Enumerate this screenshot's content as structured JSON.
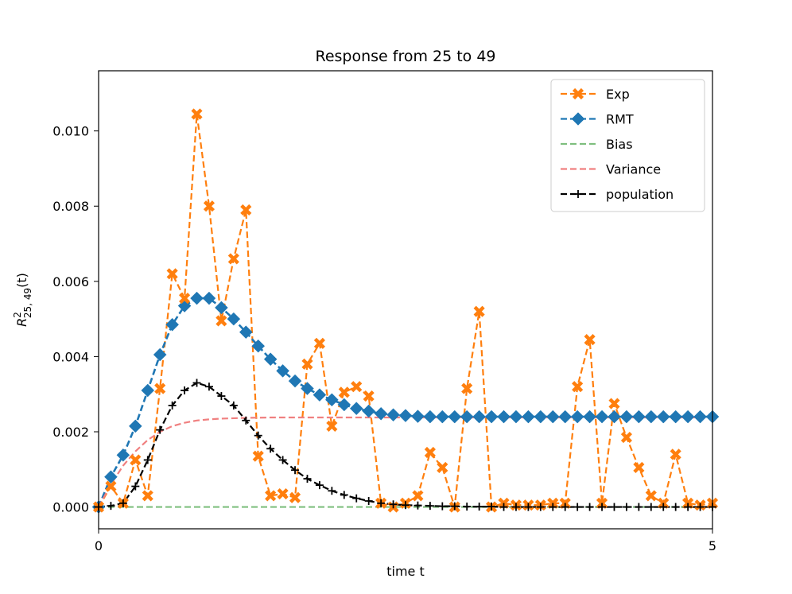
{
  "chart_data": {
    "type": "line",
    "title": "Response from 25 to 49",
    "xlabel": "time t",
    "ylabel_base": "R",
    "ylabel_sup": "2",
    "ylabel_sub": "25, 49",
    "ylabel_suffix": "(t)",
    "xlim": [
      0,
      5
    ],
    "ylim": [
      -0.00058,
      0.0116
    ],
    "xticks": [
      0,
      5
    ],
    "xtick_labels": [
      "0",
      "5"
    ],
    "yticks": [
      0.0,
      0.002,
      0.004,
      0.006,
      0.008,
      0.01
    ],
    "ytick_labels": [
      "0.000",
      "0.002",
      "0.004",
      "0.006",
      "0.008",
      "0.010"
    ],
    "grid": false,
    "legend_position": "top-right",
    "series": [
      {
        "name": "Exp",
        "color": "#ff7f0e",
        "line": "dashed",
        "marker": "x-filled",
        "x": [
          0.0,
          0.1,
          0.2,
          0.3,
          0.4,
          0.5,
          0.6,
          0.7,
          0.8,
          0.9,
          1.0,
          1.1,
          1.2,
          1.3,
          1.4,
          1.5,
          1.6,
          1.7,
          1.8,
          1.9,
          2.0,
          2.1,
          2.2,
          2.3,
          2.4,
          2.5,
          2.6,
          2.7,
          2.8,
          2.9,
          3.0,
          3.1,
          3.2,
          3.3,
          3.4,
          3.5,
          3.6,
          3.7,
          3.8,
          3.9,
          4.0,
          4.1,
          4.2,
          4.3,
          4.4,
          4.5,
          4.6,
          4.7,
          4.8,
          4.9,
          5.0
        ],
        "y": [
          0.0,
          0.00055,
          0.0001,
          0.00125,
          0.0003,
          0.00315,
          0.0062,
          0.00555,
          0.01045,
          0.008,
          0.00495,
          0.0066,
          0.0079,
          0.00135,
          0.0003,
          0.00035,
          0.00025,
          0.0038,
          0.00435,
          0.00215,
          0.00305,
          0.0032,
          0.00295,
          0.0001,
          0.0,
          0.0001,
          0.0003,
          0.00145,
          0.00105,
          0.0,
          0.00315,
          0.0052,
          0.0,
          0.0001,
          5e-05,
          5e-05,
          5e-05,
          0.0001,
          0.0001,
          0.0032,
          0.00445,
          0.0001,
          0.00275,
          0.00185,
          0.00105,
          0.0003,
          0.0001,
          0.0014,
          0.0001,
          5e-05,
          0.0001
        ]
      },
      {
        "name": "RMT",
        "color": "#1f77b4",
        "line": "dashed",
        "marker": "diamond",
        "x": [
          0.0,
          0.1,
          0.2,
          0.3,
          0.4,
          0.5,
          0.6,
          0.7,
          0.8,
          0.9,
          1.0,
          1.1,
          1.2,
          1.3,
          1.4,
          1.5,
          1.6,
          1.7,
          1.8,
          1.9,
          2.0,
          2.1,
          2.2,
          2.3,
          2.4,
          2.5,
          2.6,
          2.7,
          2.8,
          2.9,
          3.0,
          3.1,
          3.2,
          3.3,
          3.4,
          3.5,
          3.6,
          3.7,
          3.8,
          3.9,
          4.0,
          4.1,
          4.2,
          4.3,
          4.4,
          4.5,
          4.6,
          4.7,
          4.8,
          4.9,
          5.0
        ],
        "y": [
          0.0,
          0.0008,
          0.00138,
          0.00215,
          0.0031,
          0.00405,
          0.00485,
          0.00535,
          0.00555,
          0.00555,
          0.0053,
          0.005,
          0.00465,
          0.00428,
          0.00393,
          0.00362,
          0.00335,
          0.00315,
          0.00298,
          0.00285,
          0.00272,
          0.00262,
          0.00255,
          0.00248,
          0.00245,
          0.00243,
          0.00241,
          0.0024,
          0.0024,
          0.0024,
          0.0024,
          0.0024,
          0.0024,
          0.0024,
          0.0024,
          0.0024,
          0.0024,
          0.0024,
          0.0024,
          0.0024,
          0.0024,
          0.0024,
          0.0024,
          0.0024,
          0.0024,
          0.0024,
          0.0024,
          0.0024,
          0.0024,
          0.0024,
          0.0024
        ]
      },
      {
        "name": "Bias",
        "color": "#7fbf7f",
        "line": "dashed",
        "marker": "none",
        "x": [
          0.0,
          0.5,
          1.0,
          1.5,
          2.0,
          2.5,
          3.0,
          3.5,
          4.0,
          4.5,
          5.0
        ],
        "y": [
          0.0,
          0.0,
          0.0,
          0.0,
          0.0,
          0.0,
          0.0,
          0.0,
          0.0,
          0.0,
          0.0
        ]
      },
      {
        "name": "Variance",
        "color": "#f08080",
        "line": "dashed",
        "marker": "none",
        "x": [
          0.0,
          0.1,
          0.2,
          0.3,
          0.4,
          0.5,
          0.6,
          0.7,
          0.8,
          0.9,
          1.0,
          1.2,
          1.4,
          1.6,
          1.8,
          2.0,
          2.5,
          3.0,
          3.5,
          4.0,
          4.5,
          5.0
        ],
        "y": [
          0.0,
          0.0006,
          0.0011,
          0.00148,
          0.00178,
          0.002,
          0.00215,
          0.00224,
          0.0023,
          0.00233,
          0.00235,
          0.00237,
          0.00238,
          0.00238,
          0.00238,
          0.00238,
          0.00238,
          0.00238,
          0.00238,
          0.00238,
          0.00238,
          0.00238
        ]
      },
      {
        "name": "population",
        "color": "#000000",
        "line": "dashed",
        "marker": "plus",
        "x": [
          0.0,
          0.1,
          0.2,
          0.3,
          0.4,
          0.5,
          0.6,
          0.7,
          0.8,
          0.9,
          1.0,
          1.1,
          1.2,
          1.3,
          1.4,
          1.5,
          1.6,
          1.7,
          1.8,
          1.9,
          2.0,
          2.1,
          2.2,
          2.3,
          2.4,
          2.5,
          2.6,
          2.7,
          2.8,
          2.9,
          3.0,
          3.1,
          3.2,
          3.3,
          3.4,
          3.5,
          3.6,
          3.7,
          3.8,
          3.9,
          4.0,
          4.1,
          4.2,
          4.3,
          4.4,
          4.5,
          4.6,
          4.7,
          4.8,
          4.9,
          5.0
        ],
        "y": [
          0.0,
          3e-05,
          0.0001,
          0.00055,
          0.00125,
          0.00205,
          0.0027,
          0.0031,
          0.0033,
          0.0032,
          0.00295,
          0.0027,
          0.0023,
          0.0019,
          0.00155,
          0.00125,
          0.00098,
          0.00075,
          0.00058,
          0.00043,
          0.00032,
          0.00023,
          0.00016,
          0.0001,
          7e-05,
          5e-05,
          4e-05,
          3e-05,
          2e-05,
          2e-05,
          1e-05,
          1e-05,
          1e-05,
          0.0,
          0.0,
          0.0,
          0.0,
          0.0,
          0.0,
          0.0,
          0.0,
          0.0,
          0.0,
          0.0,
          0.0,
          0.0,
          0.0,
          0.0,
          0.0,
          0.0,
          0.0
        ]
      }
    ]
  }
}
